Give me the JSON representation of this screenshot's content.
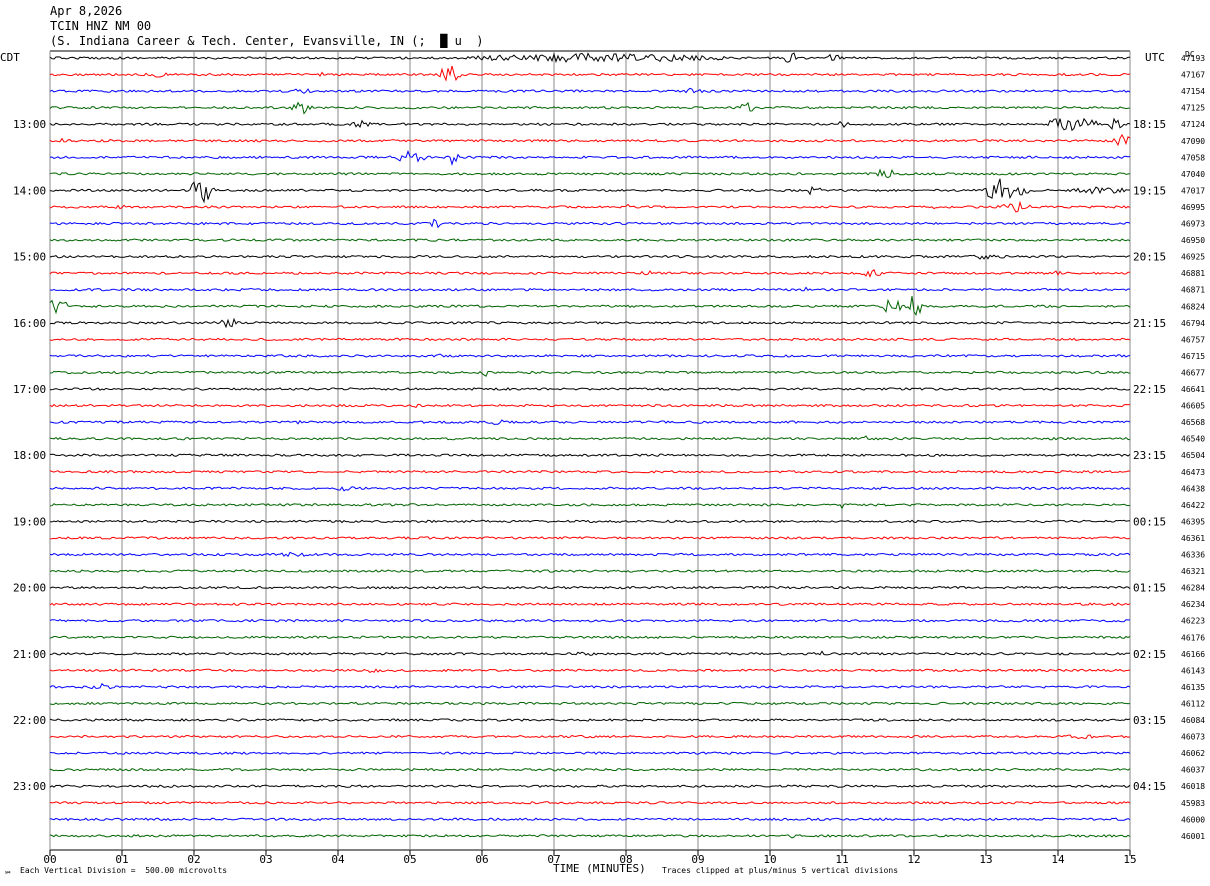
{
  "header": {
    "date": "Apr 8,2026",
    "station": "TCIN HNZ NM 00",
    "location": "(S. Indiana Career & Tech. Center, Evansville, IN (;  █ u  )"
  },
  "chart_data": {
    "type": "line",
    "left_tz": "CDT",
    "right_tz": "UTC",
    "dc_label": "DC",
    "xlabel": "TIME (MINUTES)",
    "xlim": [
      0,
      15
    ],
    "x_ticks": [
      "00",
      "01",
      "02",
      "03",
      "04",
      "05",
      "06",
      "07",
      "08",
      "09",
      "10",
      "11",
      "12",
      "13",
      "14",
      "15"
    ],
    "traces_per_hour": 4,
    "trace_colors": [
      "#000000",
      "#ff0000",
      "#0000ff",
      "#006400"
    ],
    "left_hour_labels": [
      "13:00",
      "14:00",
      "15:00",
      "16:00",
      "17:00",
      "18:00",
      "19:00",
      "20:00",
      "21:00",
      "22:00",
      "23:00"
    ],
    "right_hour_labels": [
      "18:15",
      "19:15",
      "20:15",
      "21:15",
      "22:15",
      "23:15",
      "00:15",
      "01:15",
      "02:15",
      "03:15",
      "04:15"
    ],
    "dc_offsets": [
      "47193",
      "47167",
      "47154",
      "47125",
      "47124",
      "47090",
      "47058",
      "47040",
      "47017",
      "46995",
      "46973",
      "46950",
      "46925",
      "46881",
      "46871",
      "46824",
      "46794",
      "46757",
      "46715",
      "46677",
      "46641",
      "46605",
      "46568",
      "46540",
      "46504",
      "46473",
      "46438",
      "46422",
      "46395",
      "46361",
      "46336",
      "46321",
      "46284",
      "46234",
      "46223",
      "46176",
      "46166",
      "46143",
      "46135",
      "46112",
      "46084",
      "46073",
      "46062",
      "46037",
      "46018",
      "45983",
      "46000",
      "46001"
    ],
    "bursts": [
      {
        "trace": 0,
        "minute": 7.6,
        "amp": 5,
        "width": 1.8
      },
      {
        "trace": 0,
        "minute": 10.3,
        "amp": 8,
        "width": 0.1
      },
      {
        "trace": 0,
        "minute": 10.9,
        "amp": 6,
        "width": 0.1
      },
      {
        "trace": 1,
        "minute": 5.55,
        "amp": 10,
        "width": 0.15
      },
      {
        "trace": 1,
        "minute": 1.5,
        "amp": 3,
        "width": 0.2
      },
      {
        "trace": 1,
        "minute": 3.8,
        "amp": 4,
        "width": 0.05
      },
      {
        "trace": 2,
        "minute": 8.9,
        "amp": 3,
        "width": 0.2
      },
      {
        "trace": 2,
        "minute": 3.5,
        "amp": 3,
        "width": 0.2
      },
      {
        "trace": 3,
        "minute": 3.5,
        "amp": 7,
        "width": 0.15
      },
      {
        "trace": 3,
        "minute": 9.7,
        "amp": 6,
        "width": 0.15
      },
      {
        "trace": 4,
        "minute": 4.3,
        "amp": 5,
        "width": 0.15
      },
      {
        "trace": 4,
        "minute": 11.0,
        "amp": 8,
        "width": 0.1
      },
      {
        "trace": 4,
        "minute": 14.2,
        "amp": 9,
        "width": 0.35
      },
      {
        "trace": 4,
        "minute": 14.8,
        "amp": 7,
        "width": 0.1
      },
      {
        "trace": 5,
        "minute": 14.9,
        "amp": 7,
        "width": 0.15
      },
      {
        "trace": 5,
        "minute": 0.2,
        "amp": 4,
        "width": 0.05
      },
      {
        "trace": 6,
        "minute": 5.0,
        "amp": 7,
        "width": 0.2
      },
      {
        "trace": 6,
        "minute": 5.6,
        "amp": 8,
        "width": 0.1
      },
      {
        "trace": 6,
        "minute": 4.8,
        "amp": 4,
        "width": 0.1
      },
      {
        "trace": 7,
        "minute": 11.6,
        "amp": 7,
        "width": 0.12
      },
      {
        "trace": 8,
        "minute": 2.1,
        "amp": 14,
        "width": 0.18
      },
      {
        "trace": 8,
        "minute": 10.6,
        "amp": 6,
        "width": 0.1
      },
      {
        "trace": 8,
        "minute": 13.2,
        "amp": 12,
        "width": 0.25
      },
      {
        "trace": 8,
        "minute": 13.5,
        "amp": 9,
        "width": 0.1
      },
      {
        "trace": 8,
        "minute": 14.6,
        "amp": 4,
        "width": 0.4
      },
      {
        "trace": 9,
        "minute": 13.4,
        "amp": 6,
        "width": 0.25
      },
      {
        "trace": 9,
        "minute": 12.3,
        "amp": 5,
        "width": 0.05
      },
      {
        "trace": 9,
        "minute": 1.0,
        "amp": 3,
        "width": 0.1
      },
      {
        "trace": 9,
        "minute": 8.0,
        "amp": 4,
        "width": 0.05
      },
      {
        "trace": 10,
        "minute": 5.35,
        "amp": 6,
        "width": 0.08
      },
      {
        "trace": 12,
        "minute": 13.0,
        "amp": 3,
        "width": 0.3
      },
      {
        "trace": 13,
        "minute": 11.4,
        "amp": 5,
        "width": 0.15
      },
      {
        "trace": 13,
        "minute": 8.3,
        "amp": 3,
        "width": 0.1
      },
      {
        "trace": 13,
        "minute": 14.0,
        "amp": 4,
        "width": 0.05
      },
      {
        "trace": 14,
        "minute": 10.5,
        "amp": 4,
        "width": 0.05
      },
      {
        "trace": 15,
        "minute": 0.1,
        "amp": 8,
        "width": 0.15
      },
      {
        "trace": 15,
        "minute": 11.7,
        "amp": 10,
        "width": 0.12
      },
      {
        "trace": 15,
        "minute": 12.0,
        "amp": 12,
        "width": 0.12
      },
      {
        "trace": 16,
        "minute": 2.5,
        "amp": 6,
        "width": 0.12
      },
      {
        "trace": 18,
        "minute": 5.4,
        "amp": 3,
        "width": 0.05
      },
      {
        "trace": 19,
        "minute": 6.05,
        "amp": 4,
        "width": 0.05
      },
      {
        "trace": 21,
        "minute": 5.1,
        "amp": 3,
        "width": 0.05
      },
      {
        "trace": 22,
        "minute": 3.5,
        "amp": 3,
        "width": 0.1
      },
      {
        "trace": 22,
        "minute": 6.2,
        "amp": 4,
        "width": 0.1
      },
      {
        "trace": 23,
        "minute": 11.3,
        "amp": 5,
        "width": 0.05
      },
      {
        "trace": 26,
        "minute": 4.1,
        "amp": 3,
        "width": 0.15
      },
      {
        "trace": 27,
        "minute": 11.0,
        "amp": 6,
        "width": 0.03
      },
      {
        "trace": 30,
        "minute": 3.4,
        "amp": 3,
        "width": 0.2
      },
      {
        "trace": 36,
        "minute": 7.4,
        "amp": 3,
        "width": 0.15
      },
      {
        "trace": 36,
        "minute": 10.7,
        "amp": 3,
        "width": 0.1
      },
      {
        "trace": 37,
        "minute": 4.5,
        "amp": 4,
        "width": 0.1
      },
      {
        "trace": 38,
        "minute": 0.7,
        "amp": 4,
        "width": 0.15
      },
      {
        "trace": 41,
        "minute": 14.4,
        "amp": 3,
        "width": 0.3
      },
      {
        "trace": 47,
        "minute": 10.3,
        "amp": 3,
        "width": 0.05
      }
    ]
  },
  "footer": {
    "division": "Each Vertical Division =  500.00 microvolts",
    "clip": "Traces clipped at plus/minus 5 vertical divisions",
    "corner": "℠"
  }
}
